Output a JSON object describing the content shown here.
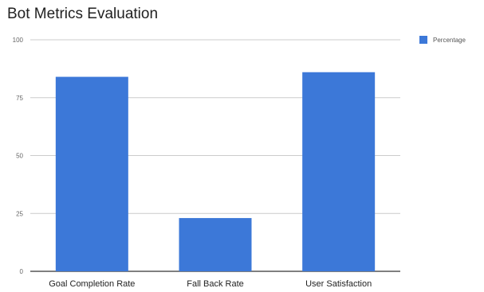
{
  "chart_data": {
    "type": "bar",
    "title": "Bot Metrics Evaluation",
    "categories": [
      "Goal Completion Rate",
      "Fall Back Rate",
      "User Satisfaction"
    ],
    "series": [
      {
        "name": "Percentage",
        "values": [
          84,
          23,
          86
        ],
        "color": "#3c78d8"
      }
    ],
    "xlabel": "",
    "ylabel": "",
    "ylim": [
      0,
      100
    ],
    "yticks": [
      0,
      25,
      50,
      75,
      100
    ],
    "ytick_labels": [
      "0",
      "25",
      "50",
      "75",
      "100"
    ],
    "grid": true,
    "legend_position": "right"
  }
}
